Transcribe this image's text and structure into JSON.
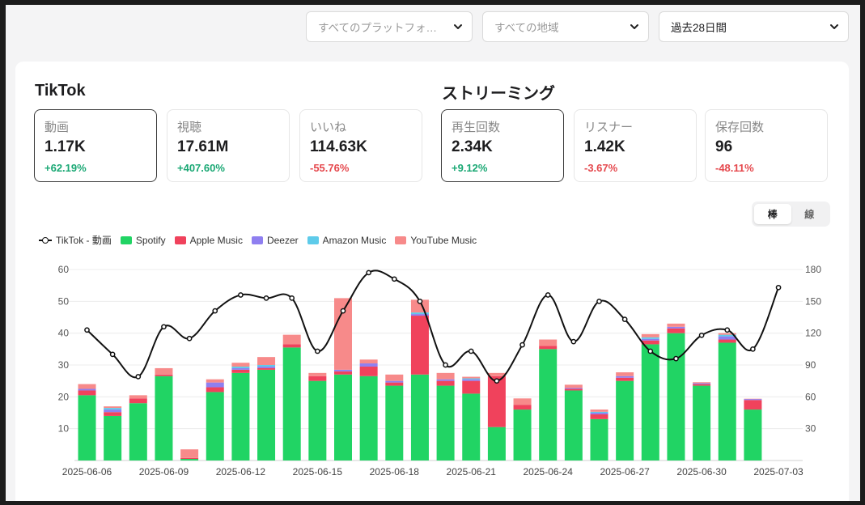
{
  "filters": {
    "platform": "すべてのプラットフォ…",
    "region": "すべての地域",
    "period": "過去28日間"
  },
  "tiktok": {
    "title": "TikTok",
    "stats": [
      {
        "label": "動画",
        "value": "1.17K",
        "change": "+62.19%",
        "trend": "pos"
      },
      {
        "label": "視聴",
        "value": "17.61M",
        "change": "+407.60%",
        "trend": "pos"
      },
      {
        "label": "いいね",
        "value": "114.63K",
        "change": "-55.76%",
        "trend": "neg"
      }
    ]
  },
  "streaming": {
    "title": "ストリーミング",
    "stats": [
      {
        "label": "再生回数",
        "value": "2.34K",
        "change": "+9.12%",
        "trend": "pos"
      },
      {
        "label": "リスナー",
        "value": "1.42K",
        "change": "-3.67%",
        "trend": "neg"
      },
      {
        "label": "保存回数",
        "value": "96",
        "change": "-48.11%",
        "trend": "neg"
      }
    ]
  },
  "view_toggle": {
    "bar": "棒",
    "line": "線"
  },
  "legend": {
    "tiktok": "TikTok - 動画",
    "spotify": "Spotify",
    "apple": "Apple Music",
    "deezer": "Deezer",
    "amazon": "Amazon Music",
    "youtube": "YouTube Music"
  },
  "colors": {
    "spotify": "#21d464",
    "apple": "#f0425c",
    "deezer": "#8f7ff0",
    "amazon": "#5ecbea",
    "youtube": "#f78a8a",
    "line": "#111111",
    "positive": "#1aa874",
    "negative": "#e5484d"
  },
  "chart_data": {
    "type": "bar",
    "stacked": true,
    "x": [
      "2025-06-06",
      "2025-06-07",
      "2025-06-08",
      "2025-06-09",
      "2025-06-10",
      "2025-06-11",
      "2025-06-12",
      "2025-06-13",
      "2025-06-14",
      "2025-06-15",
      "2025-06-16",
      "2025-06-17",
      "2025-06-18",
      "2025-06-19",
      "2025-06-20",
      "2025-06-21",
      "2025-06-22",
      "2025-06-23",
      "2025-06-24",
      "2025-06-25",
      "2025-06-26",
      "2025-06-27",
      "2025-06-28",
      "2025-06-29",
      "2025-06-30",
      "2025-07-01",
      "2025-07-02",
      "2025-07-03"
    ],
    "x_tick_labels": [
      "2025-06-06",
      "2025-06-09",
      "2025-06-12",
      "2025-06-15",
      "2025-06-18",
      "2025-06-21",
      "2025-06-24",
      "2025-06-27",
      "2025-06-30",
      "2025-07-03"
    ],
    "y_left": {
      "ticks": [
        10,
        20,
        30,
        40,
        50,
        60
      ],
      "range": [
        0,
        60
      ]
    },
    "y_right": {
      "ticks": [
        30,
        60,
        90,
        120,
        150,
        180
      ],
      "range": [
        0,
        180
      ]
    },
    "grid": true,
    "legend_position": "top-left",
    "series": [
      {
        "key": "spotify",
        "name": "Spotify",
        "values": [
          20.5,
          14,
          18,
          26.5,
          0.5,
          21.5,
          27.5,
          28.5,
          35.5,
          25,
          27,
          26.5,
          23.5,
          27,
          23.5,
          21,
          10.5,
          16,
          35,
          22,
          13,
          25,
          36.5,
          40,
          23.5,
          37,
          16,
          null
        ]
      },
      {
        "key": "apple",
        "name": "Apple Music",
        "values": [
          1.5,
          1.2,
          1.5,
          0.5,
          0.3,
          1.5,
          1,
          0.5,
          1,
          1.5,
          1,
          3,
          1,
          18.5,
          1.5,
          4,
          16,
          1.5,
          1,
          0.5,
          1.5,
          1,
          1.2,
          1.5,
          0.5,
          1,
          3,
          null
        ]
      },
      {
        "key": "deezer",
        "name": "Deezer",
        "values": [
          0.5,
          0.8,
          0,
          0,
          0,
          1.5,
          0.5,
          0.5,
          0,
          0,
          0.5,
          1,
          0.5,
          0.5,
          0.5,
          0.5,
          0,
          0,
          0,
          0.3,
          0.5,
          0.5,
          0.5,
          0.5,
          0.3,
          1,
          0.3,
          null
        ]
      },
      {
        "key": "amazon",
        "name": "Amazon Music",
        "values": [
          0,
          0.5,
          0,
          0,
          0,
          0,
          0.5,
          0.5,
          0,
          0,
          0,
          0,
          0,
          0.5,
          0,
          0.3,
          0,
          0,
          0,
          0,
          0.3,
          0,
          0.5,
          0,
          0,
          0.5,
          0,
          null
        ]
      },
      {
        "key": "youtube",
        "name": "YouTube Music",
        "values": [
          1.5,
          0.5,
          1,
          2,
          2.7,
          1,
          1.2,
          2.5,
          3,
          1,
          22.5,
          1.2,
          2,
          4,
          2,
          0.5,
          1,
          2,
          2,
          1,
          0.7,
          1.2,
          1,
          1,
          0.3,
          0.5,
          0.1,
          null
        ]
      }
    ],
    "line": {
      "key": "tiktok",
      "name": "TikTok - 動画",
      "axis": "right",
      "values": [
        123,
        100,
        79,
        126,
        115,
        141,
        156,
        153,
        153,
        103,
        141,
        177,
        171,
        150,
        90,
        103,
        75,
        109,
        156,
        112,
        150,
        133,
        103,
        96,
        118,
        123,
        105,
        163
      ]
    }
  }
}
